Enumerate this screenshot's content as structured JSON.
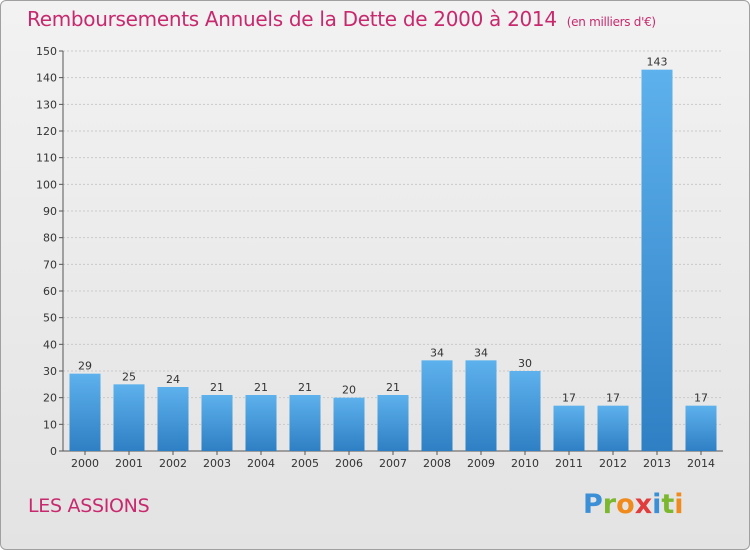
{
  "title": "Remboursements Annuels de la Dette de 2000 à 2014",
  "unit": "(en milliers d'€)",
  "commune": "LES ASSIONS",
  "logo": {
    "letters": [
      {
        "ch": "P",
        "color": "#3a8fd6"
      },
      {
        "ch": "r",
        "color": "#7cb82f"
      },
      {
        "ch": "o",
        "color": "#f08a1c"
      },
      {
        "ch": "x",
        "color": "#e23b3b"
      },
      {
        "ch": "i",
        "color": "#3a8fd6"
      },
      {
        "ch": "t",
        "color": "#7cb82f"
      },
      {
        "ch": "i",
        "color": "#f08a1c"
      }
    ]
  },
  "colors": {
    "accent": "#c8296e",
    "bar_top": "#5db1ec",
    "bar_bottom": "#2f7fc4"
  },
  "chart_data": {
    "type": "bar",
    "categories": [
      "2000",
      "2001",
      "2002",
      "2003",
      "2004",
      "2005",
      "2006",
      "2007",
      "2008",
      "2009",
      "2010",
      "2011",
      "2012",
      "2013",
      "2014"
    ],
    "values": [
      29,
      25,
      24,
      21,
      21,
      21,
      20,
      21,
      34,
      34,
      30,
      17,
      17,
      143,
      17
    ],
    "ylim": [
      0,
      150
    ],
    "yticks": [
      0,
      10,
      20,
      30,
      40,
      50,
      60,
      70,
      80,
      90,
      100,
      110,
      120,
      130,
      140,
      150
    ],
    "grid": true
  }
}
